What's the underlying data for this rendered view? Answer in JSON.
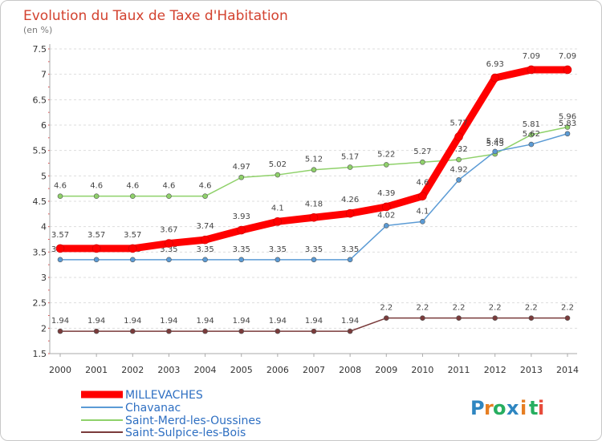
{
  "chart_data": {
    "type": "line",
    "title": "Evolution du Taux de Taxe d'Habitation",
    "subtitle": "(en %)",
    "xlabel": "",
    "ylabel": "",
    "ylim": [
      1.5,
      7.5
    ],
    "y_ticks": [
      "1.5",
      "2",
      "2.5",
      "3",
      "3.5",
      "4",
      "4.5",
      "5",
      "5.5",
      "6",
      "6.5",
      "7",
      "7.5"
    ],
    "categories": [
      "2000",
      "2001",
      "2002",
      "2003",
      "2004",
      "2005",
      "2006",
      "2007",
      "2008",
      "2009",
      "2010",
      "2011",
      "2012",
      "2013",
      "2014"
    ],
    "grid": "horizontal dashed",
    "legend_position": "bottom-left",
    "series": [
      {
        "name": "MILLEVACHES",
        "color": "#ff0000",
        "values": [
          3.57,
          3.57,
          3.57,
          3.67,
          3.74,
          3.93,
          4.1,
          4.18,
          4.26,
          4.39,
          4.6,
          5.77,
          6.93,
          7.09,
          7.09
        ],
        "labels": [
          "3.57",
          "3.57",
          "3.57",
          "3.67",
          "3.74",
          "3.93",
          "4.1",
          "4.18",
          "4.26",
          "4.39",
          "4.6",
          "5.77",
          "6.93",
          "7.09",
          "7.09"
        ]
      },
      {
        "name": "Chavanac",
        "color": "#5b9bd5",
        "values": [
          3.35,
          3.35,
          3.35,
          3.35,
          3.35,
          3.35,
          3.35,
          3.35,
          3.35,
          4.02,
          4.1,
          4.92,
          5.48,
          5.62,
          5.83
        ],
        "labels": [
          "3.35",
          "3.35",
          "3.35",
          "3.35",
          "3.35",
          "3.35",
          "3.35",
          "3.35",
          "3.35",
          "4.02",
          "4.1",
          "4.92",
          "5.48",
          "5.62",
          "5.83"
        ]
      },
      {
        "name": "Saint-Merd-les-Oussines",
        "color": "#8fd16a",
        "values": [
          4.6,
          4.6,
          4.6,
          4.6,
          4.6,
          4.97,
          5.02,
          5.12,
          5.17,
          5.22,
          5.27,
          5.32,
          5.43,
          5.81,
          5.96
        ],
        "labels": [
          "4.6",
          "4.6",
          "4.6",
          "4.6",
          "4.6",
          "4.97",
          "5.02",
          "5.12",
          "5.17",
          "5.22",
          "5.27",
          "5.32",
          "5.43",
          "5.81",
          "5.96"
        ]
      },
      {
        "name": "Saint-Sulpice-les-Bois",
        "color": "#7a3b3b",
        "values": [
          1.94,
          1.94,
          1.94,
          1.94,
          1.94,
          1.94,
          1.94,
          1.94,
          1.94,
          2.2,
          2.2,
          2.2,
          2.2,
          2.2,
          2.2
        ],
        "labels": [
          "1.94",
          "1.94",
          "1.94",
          "1.94",
          "1.94",
          "1.94",
          "1.94",
          "1.94",
          "1.94",
          "2.2",
          "2.2",
          "2.2",
          "2.2",
          "2.2",
          "2.2"
        ]
      }
    ]
  },
  "brand": {
    "letters": [
      "P",
      "r",
      "o",
      "x",
      "i",
      "t",
      "i"
    ],
    "colors": [
      "#2e86c1",
      "#e67e22",
      "#27ae60",
      "#2e86c1",
      "#e67e22",
      "#27ae60",
      "#e74c3c"
    ]
  }
}
